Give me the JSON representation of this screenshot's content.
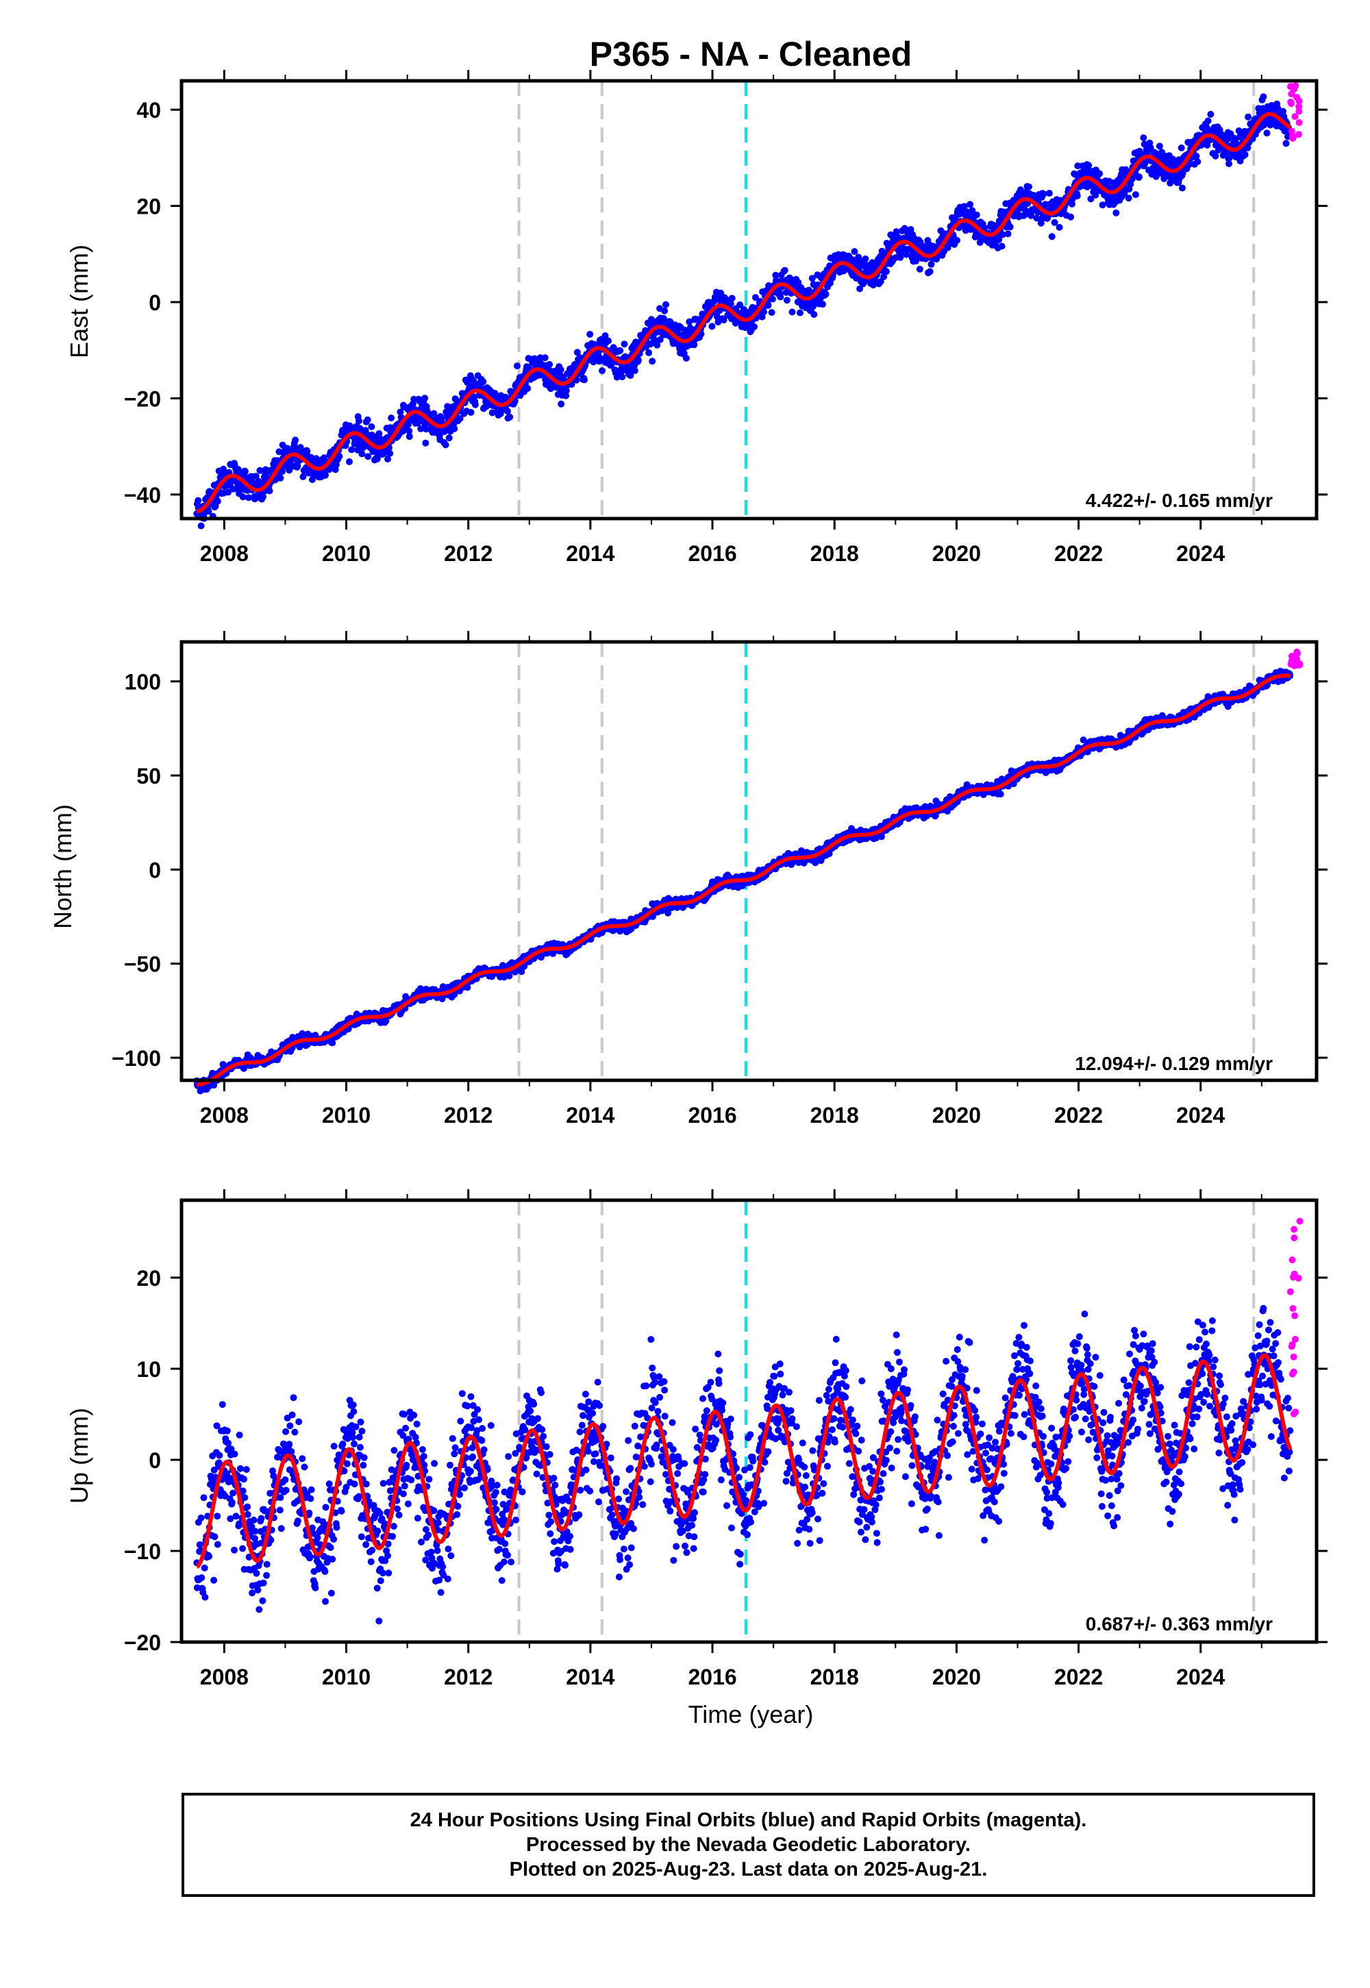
{
  "title": "P365  - NA - Cleaned",
  "x_axis_label": "Time (year)",
  "footer": {
    "line1": "24 Hour Positions Using Final Orbits (blue) and Rapid Orbits (magenta).",
    "line2": "Processed by the Nevada Geodetic Laboratory.",
    "line3": "Plotted on 2025-Aug-23. Last data on 2025-Aug-21."
  },
  "colors": {
    "final_orbits": "#0000ff",
    "rapid_orbits": "#ff00ff",
    "model": "#ff0000",
    "equipment_change": "#c8c8c8",
    "earthquake": "#00e5e5"
  },
  "chart_data": [
    {
      "type": "scatter",
      "panel": "east",
      "ylabel": "East (mm)",
      "xlim": [
        2007.3,
        2025.9
      ],
      "ylim": [
        -45,
        46
      ],
      "xticks": [
        2008,
        2010,
        2012,
        2014,
        2016,
        2018,
        2020,
        2022,
        2024
      ],
      "yticks": [
        -40,
        -20,
        0,
        20,
        40
      ],
      "rate_label": "4.422+/- 0.165 mm/yr",
      "data_span": [
        2007.55,
        2025.47
      ],
      "series": [
        {
          "role": "final",
          "marker": "dot",
          "model": {
            "ref_year": 2016.5,
            "offset_mm": -1.5,
            "rate_mm_per_yr": 4.422,
            "annual_amp_mm": 2.5,
            "annual_phase": 1.0
          },
          "scatter_mm": 1.6
        },
        {
          "role": "rapid",
          "x_range": [
            2025.47,
            2025.63
          ],
          "y_range": [
            34,
            45
          ]
        },
        {
          "role": "model_curve",
          "type": "line"
        }
      ],
      "vlines": [
        {
          "x": 2012.83,
          "kind": "equipment_change"
        },
        {
          "x": 2014.19,
          "kind": "equipment_change"
        },
        {
          "x": 2016.55,
          "kind": "earthquake"
        },
        {
          "x": 2024.87,
          "kind": "equipment_change"
        }
      ]
    },
    {
      "type": "scatter",
      "panel": "north",
      "ylabel": "North (mm)",
      "xlim": [
        2007.3,
        2025.9
      ],
      "ylim": [
        -112,
        121
      ],
      "xticks": [
        2008,
        2010,
        2012,
        2014,
        2016,
        2018,
        2020,
        2022,
        2024
      ],
      "yticks": [
        -100,
        -50,
        0,
        50,
        100
      ],
      "rate_label": "12.094+/- 0.129 mm/yr",
      "data_span": [
        2007.55,
        2025.47
      ],
      "series": [
        {
          "role": "final",
          "marker": "dot",
          "model": {
            "ref_year": 2016.5,
            "offset_mm": -5.0,
            "rate_mm_per_yr": 12.094,
            "annual_amp_mm": 1.8,
            "annual_phase": 0.4
          },
          "scatter_mm": 1.4
        },
        {
          "role": "rapid",
          "x_range": [
            2025.47,
            2025.63
          ],
          "y_range": [
            108,
            116
          ]
        },
        {
          "role": "model_curve",
          "type": "line"
        }
      ],
      "vlines": [
        {
          "x": 2012.83,
          "kind": "equipment_change"
        },
        {
          "x": 2014.19,
          "kind": "equipment_change"
        },
        {
          "x": 2016.55,
          "kind": "earthquake"
        },
        {
          "x": 2024.87,
          "kind": "equipment_change"
        }
      ]
    },
    {
      "type": "scatter",
      "panel": "up",
      "ylabel": "Up (mm)",
      "xlim": [
        2007.3,
        2025.9
      ],
      "ylim": [
        -20,
        28.5
      ],
      "xticks": [
        2008,
        2010,
        2012,
        2014,
        2016,
        2018,
        2020,
        2022,
        2024
      ],
      "yticks": [
        -20,
        -10,
        0,
        10,
        20
      ],
      "rate_label": "0.687+/- 0.363 mm/yr",
      "data_span": [
        2007.55,
        2025.47
      ],
      "series": [
        {
          "role": "final",
          "marker": "dot",
          "model": {
            "ref_year": 2016.5,
            "offset_mm": 0.0,
            "rate_mm_per_yr": 0.687,
            "annual_amp_mm": 5.6,
            "annual_phase": 1.3
          },
          "scatter_mm": 2.8
        },
        {
          "role": "rapid",
          "x_range": [
            2025.47,
            2025.63
          ],
          "y_range": [
            5,
            27.5
          ]
        },
        {
          "role": "model_curve",
          "type": "line"
        }
      ],
      "vlines": [
        {
          "x": 2012.83,
          "kind": "equipment_change"
        },
        {
          "x": 2014.19,
          "kind": "equipment_change"
        },
        {
          "x": 2016.55,
          "kind": "earthquake"
        },
        {
          "x": 2024.87,
          "kind": "equipment_change"
        }
      ]
    }
  ]
}
